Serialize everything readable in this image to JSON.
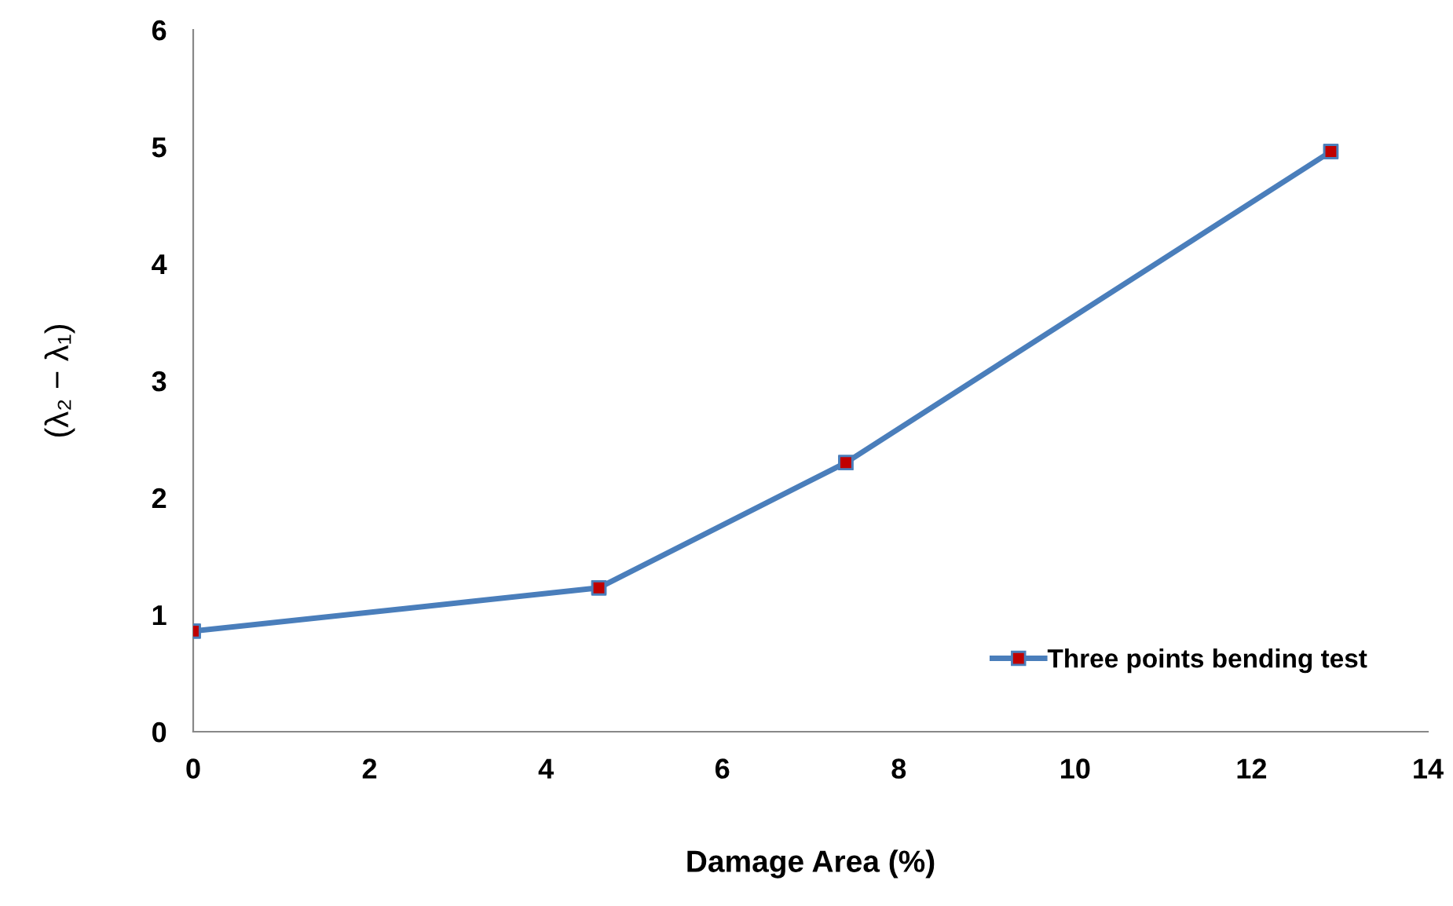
{
  "chart_data": {
    "type": "line",
    "xlabel": "Damage Area (%)",
    "ylabel": "(λ₂ − λ₁)",
    "xlim": [
      0,
      14
    ],
    "xticks": [
      0,
      2,
      4,
      6,
      8,
      10,
      12,
      14
    ],
    "ylim": [
      0,
      6
    ],
    "yticks": [
      0,
      1,
      2,
      3,
      4,
      5,
      6
    ],
    "grid": false,
    "legend": "bottom right",
    "marker": "square",
    "line_style": "solid",
    "series": [
      {
        "name": "Three points bending test",
        "color": "#4a7ebb",
        "colors": [
          "#c00000",
          "#c00000",
          "#c00000",
          "#c00000"
        ],
        "x": [
          0,
          4.6,
          7.4,
          12.9
        ],
        "values": [
          0.86,
          1.23,
          2.3,
          4.96
        ]
      }
    ]
  }
}
